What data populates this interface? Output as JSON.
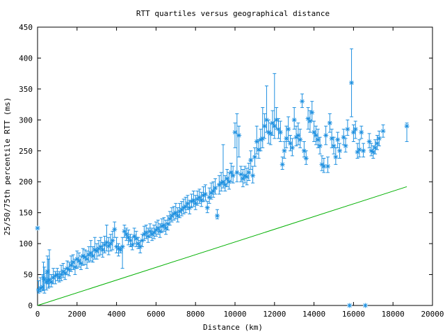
{
  "chart_data": {
    "type": "scatter",
    "title": "RTT quartiles versus geographical distance",
    "xlabel": "Distance (km)",
    "ylabel": "25/50/75th percentile RTT (ms)",
    "xlim": [
      0,
      20000
    ],
    "ylim": [
      0,
      450
    ],
    "xticks": [
      0,
      2000,
      4000,
      6000,
      8000,
      10000,
      12000,
      14000,
      16000,
      18000,
      20000
    ],
    "yticks": [
      0,
      50,
      100,
      150,
      200,
      250,
      300,
      350,
      400,
      450
    ],
    "grid": false,
    "colors": {
      "measured": "#1e90e0",
      "reference": "#00b000"
    },
    "reference_line": {
      "x": [
        0,
        18700
      ],
      "y": [
        0,
        192
      ]
    },
    "series": [
      {
        "marker": "asterisk",
        "errorbars": true,
        "points": [
          [
            0,
            125,
            125,
            125
          ],
          [
            50,
            25,
            20,
            40
          ],
          [
            150,
            28,
            22,
            45
          ],
          [
            250,
            30,
            24,
            50
          ],
          [
            300,
            45,
            25,
            70
          ],
          [
            350,
            42,
            20,
            62
          ],
          [
            450,
            38,
            25,
            52
          ],
          [
            500,
            55,
            35,
            80
          ],
          [
            550,
            40,
            28,
            75
          ],
          [
            600,
            42,
            30,
            90
          ],
          [
            700,
            38,
            30,
            50
          ],
          [
            800,
            45,
            35,
            60
          ],
          [
            900,
            48,
            35,
            55
          ],
          [
            1000,
            50,
            40,
            60
          ],
          [
            1100,
            45,
            38,
            55
          ],
          [
            1200,
            50,
            40,
            65
          ],
          [
            1300,
            55,
            45,
            68
          ],
          [
            1400,
            52,
            42,
            60
          ],
          [
            1500,
            60,
            50,
            72
          ],
          [
            1600,
            58,
            48,
            70
          ],
          [
            1700,
            65,
            55,
            80
          ],
          [
            1800,
            70,
            58,
            82
          ],
          [
            1900,
            62,
            50,
            75
          ],
          [
            2000,
            75,
            60,
            88
          ],
          [
            2100,
            72,
            62,
            85
          ],
          [
            2200,
            68,
            58,
            80
          ],
          [
            2300,
            80,
            65,
            92
          ],
          [
            2400,
            78,
            66,
            90
          ],
          [
            2500,
            75,
            60,
            88
          ],
          [
            2600,
            82,
            70,
            95
          ],
          [
            2700,
            85,
            72,
            105
          ],
          [
            2800,
            80,
            70,
            95
          ],
          [
            2900,
            90,
            75,
            110
          ],
          [
            3000,
            88,
            75,
            100
          ],
          [
            3100,
            92,
            80,
            105
          ],
          [
            3200,
            95,
            82,
            110
          ],
          [
            3300,
            90,
            78,
            102
          ],
          [
            3400,
            98,
            85,
            112
          ],
          [
            3500,
            102,
            88,
            130
          ],
          [
            3600,
            96,
            82,
            110
          ],
          [
            3700,
            100,
            88,
            115
          ],
          [
            3800,
            105,
            90,
            120
          ],
          [
            3900,
            123,
            110,
            135
          ],
          [
            4000,
            95,
            85,
            110
          ],
          [
            4100,
            92,
            80,
            100
          ],
          [
            4200,
            90,
            85,
            95
          ],
          [
            4300,
            95,
            60,
            110
          ],
          [
            4400,
            120,
            110,
            130
          ],
          [
            4500,
            115,
            105,
            125
          ],
          [
            4600,
            110,
            98,
            122
          ],
          [
            4700,
            105,
            95,
            115
          ],
          [
            4800,
            98,
            90,
            110
          ],
          [
            4900,
            112,
            100,
            125
          ],
          [
            5000,
            108,
            95,
            120
          ],
          [
            5100,
            100,
            92,
            110
          ],
          [
            5200,
            95,
            85,
            105
          ],
          [
            5300,
            105,
            95,
            115
          ],
          [
            5400,
            115,
            105,
            128
          ],
          [
            5500,
            118,
            108,
            130
          ],
          [
            5600,
            112,
            102,
            125
          ],
          [
            5700,
            120,
            110,
            132
          ],
          [
            5800,
            115,
            105,
            125
          ],
          [
            5900,
            118,
            108,
            130
          ],
          [
            6000,
            122,
            112,
            135
          ],
          [
            6100,
            125,
            115,
            138
          ],
          [
            6200,
            120,
            110,
            132
          ],
          [
            6300,
            128,
            118,
            140
          ],
          [
            6400,
            130,
            120,
            142
          ],
          [
            6500,
            125,
            115,
            138
          ],
          [
            6600,
            132,
            122,
            145
          ],
          [
            6700,
            140,
            130,
            152
          ],
          [
            6800,
            145,
            135,
            158
          ],
          [
            6900,
            148,
            138,
            160
          ],
          [
            7000,
            150,
            140,
            165
          ],
          [
            7100,
            145,
            135,
            158
          ],
          [
            7200,
            152,
            142,
            165
          ],
          [
            7300,
            155,
            145,
            168
          ],
          [
            7400,
            158,
            148,
            172
          ],
          [
            7500,
            160,
            150,
            175
          ],
          [
            7600,
            165,
            155,
            178
          ],
          [
            7700,
            158,
            148,
            170
          ],
          [
            7800,
            168,
            158,
            180
          ],
          [
            7900,
            170,
            160,
            185
          ],
          [
            8000,
            165,
            155,
            178
          ],
          [
            8100,
            172,
            162,
            185
          ],
          [
            8200,
            175,
            165,
            188
          ],
          [
            8300,
            170,
            160,
            183
          ],
          [
            8400,
            178,
            168,
            192
          ],
          [
            8500,
            180,
            170,
            195
          ],
          [
            8600,
            158,
            150,
            168
          ],
          [
            8700,
            175,
            165,
            190
          ],
          [
            8800,
            182,
            172,
            198
          ],
          [
            8900,
            185,
            175,
            200
          ],
          [
            9000,
            190,
            180,
            205
          ],
          [
            9100,
            145,
            140,
            155
          ],
          [
            9200,
            195,
            180,
            210
          ],
          [
            9300,
            198,
            185,
            215
          ],
          [
            9400,
            200,
            190,
            260
          ],
          [
            9500,
            195,
            185,
            210
          ],
          [
            9600,
            205,
            192,
            220
          ],
          [
            9700,
            200,
            188,
            215
          ],
          [
            9800,
            215,
            200,
            230
          ],
          [
            9900,
            210,
            198,
            225
          ],
          [
            10000,
            280,
            255,
            295
          ],
          [
            10100,
            215,
            200,
            310
          ],
          [
            10200,
            275,
            240,
            290
          ],
          [
            10300,
            212,
            200,
            225
          ],
          [
            10400,
            205,
            192,
            220
          ],
          [
            10500,
            210,
            198,
            225
          ],
          [
            10600,
            208,
            195,
            222
          ],
          [
            10700,
            215,
            202,
            230
          ],
          [
            10800,
            235,
            220,
            250
          ],
          [
            10900,
            210,
            198,
            225
          ],
          [
            11000,
            240,
            225,
            255
          ],
          [
            11100,
            265,
            245,
            290
          ],
          [
            11200,
            252,
            238,
            268
          ],
          [
            11300,
            268,
            250,
            285
          ],
          [
            11400,
            270,
            255,
            320
          ],
          [
            11500,
            290,
            270,
            310
          ],
          [
            11600,
            300,
            280,
            355
          ],
          [
            11700,
            280,
            262,
            300
          ],
          [
            11800,
            278,
            260,
            295
          ],
          [
            11900,
            295,
            275,
            315
          ],
          [
            12000,
            290,
            270,
            375
          ],
          [
            12100,
            300,
            285,
            320
          ],
          [
            12200,
            285,
            270,
            302
          ],
          [
            12300,
            280,
            265,
            298
          ],
          [
            12400,
            228,
            220,
            240
          ],
          [
            12500,
            250,
            238,
            265
          ],
          [
            12600,
            270,
            255,
            290
          ],
          [
            12700,
            285,
            265,
            305
          ],
          [
            12800,
            262,
            250,
            275
          ],
          [
            12900,
            255,
            242,
            270
          ],
          [
            13000,
            300,
            285,
            320
          ],
          [
            13100,
            272,
            258,
            290
          ],
          [
            13200,
            275,
            260,
            295
          ],
          [
            13300,
            268,
            255,
            285
          ],
          [
            13400,
            330,
            320,
            342
          ],
          [
            13500,
            250,
            240,
            265
          ],
          [
            13600,
            238,
            228,
            250
          ],
          [
            13700,
            302,
            285,
            320
          ],
          [
            13800,
            298,
            280,
            315
          ],
          [
            13900,
            312,
            298,
            330
          ],
          [
            14000,
            280,
            265,
            298
          ],
          [
            14100,
            275,
            260,
            290
          ],
          [
            14200,
            268,
            255,
            285
          ],
          [
            14300,
            258,
            245,
            272
          ],
          [
            14400,
            228,
            218,
            242
          ],
          [
            14500,
            225,
            215,
            238
          ],
          [
            14600,
            275,
            260,
            290
          ],
          [
            14700,
            225,
            215,
            240
          ],
          [
            14800,
            295,
            280,
            310
          ],
          [
            14900,
            270,
            255,
            285
          ],
          [
            15000,
            258,
            245,
            272
          ],
          [
            15100,
            240,
            228,
            255
          ],
          [
            15200,
            268,
            255,
            280
          ],
          [
            15300,
            250,
            238,
            262
          ],
          [
            15500,
            272,
            260,
            285
          ],
          [
            15600,
            258,
            248,
            270
          ],
          [
            15700,
            285,
            275,
            300
          ],
          [
            15800,
            0,
            0,
            0
          ],
          [
            15900,
            360,
            305,
            415
          ],
          [
            16000,
            280,
            265,
            292
          ],
          [
            16100,
            285,
            270,
            298
          ],
          [
            16200,
            248,
            238,
            262
          ],
          [
            16300,
            252,
            240,
            268
          ],
          [
            16400,
            280,
            270,
            290
          ],
          [
            16500,
            250,
            240,
            262
          ],
          [
            16600,
            0,
            0,
            0
          ],
          [
            16800,
            265,
            255,
            278
          ],
          [
            16900,
            250,
            242,
            262
          ],
          [
            17000,
            248,
            238,
            258
          ],
          [
            17100,
            255,
            245,
            268
          ],
          [
            17200,
            262,
            252,
            275
          ],
          [
            17300,
            270,
            258,
            282
          ],
          [
            17500,
            282,
            272,
            292
          ],
          [
            18700,
            290,
            265,
            295
          ]
        ]
      }
    ]
  }
}
